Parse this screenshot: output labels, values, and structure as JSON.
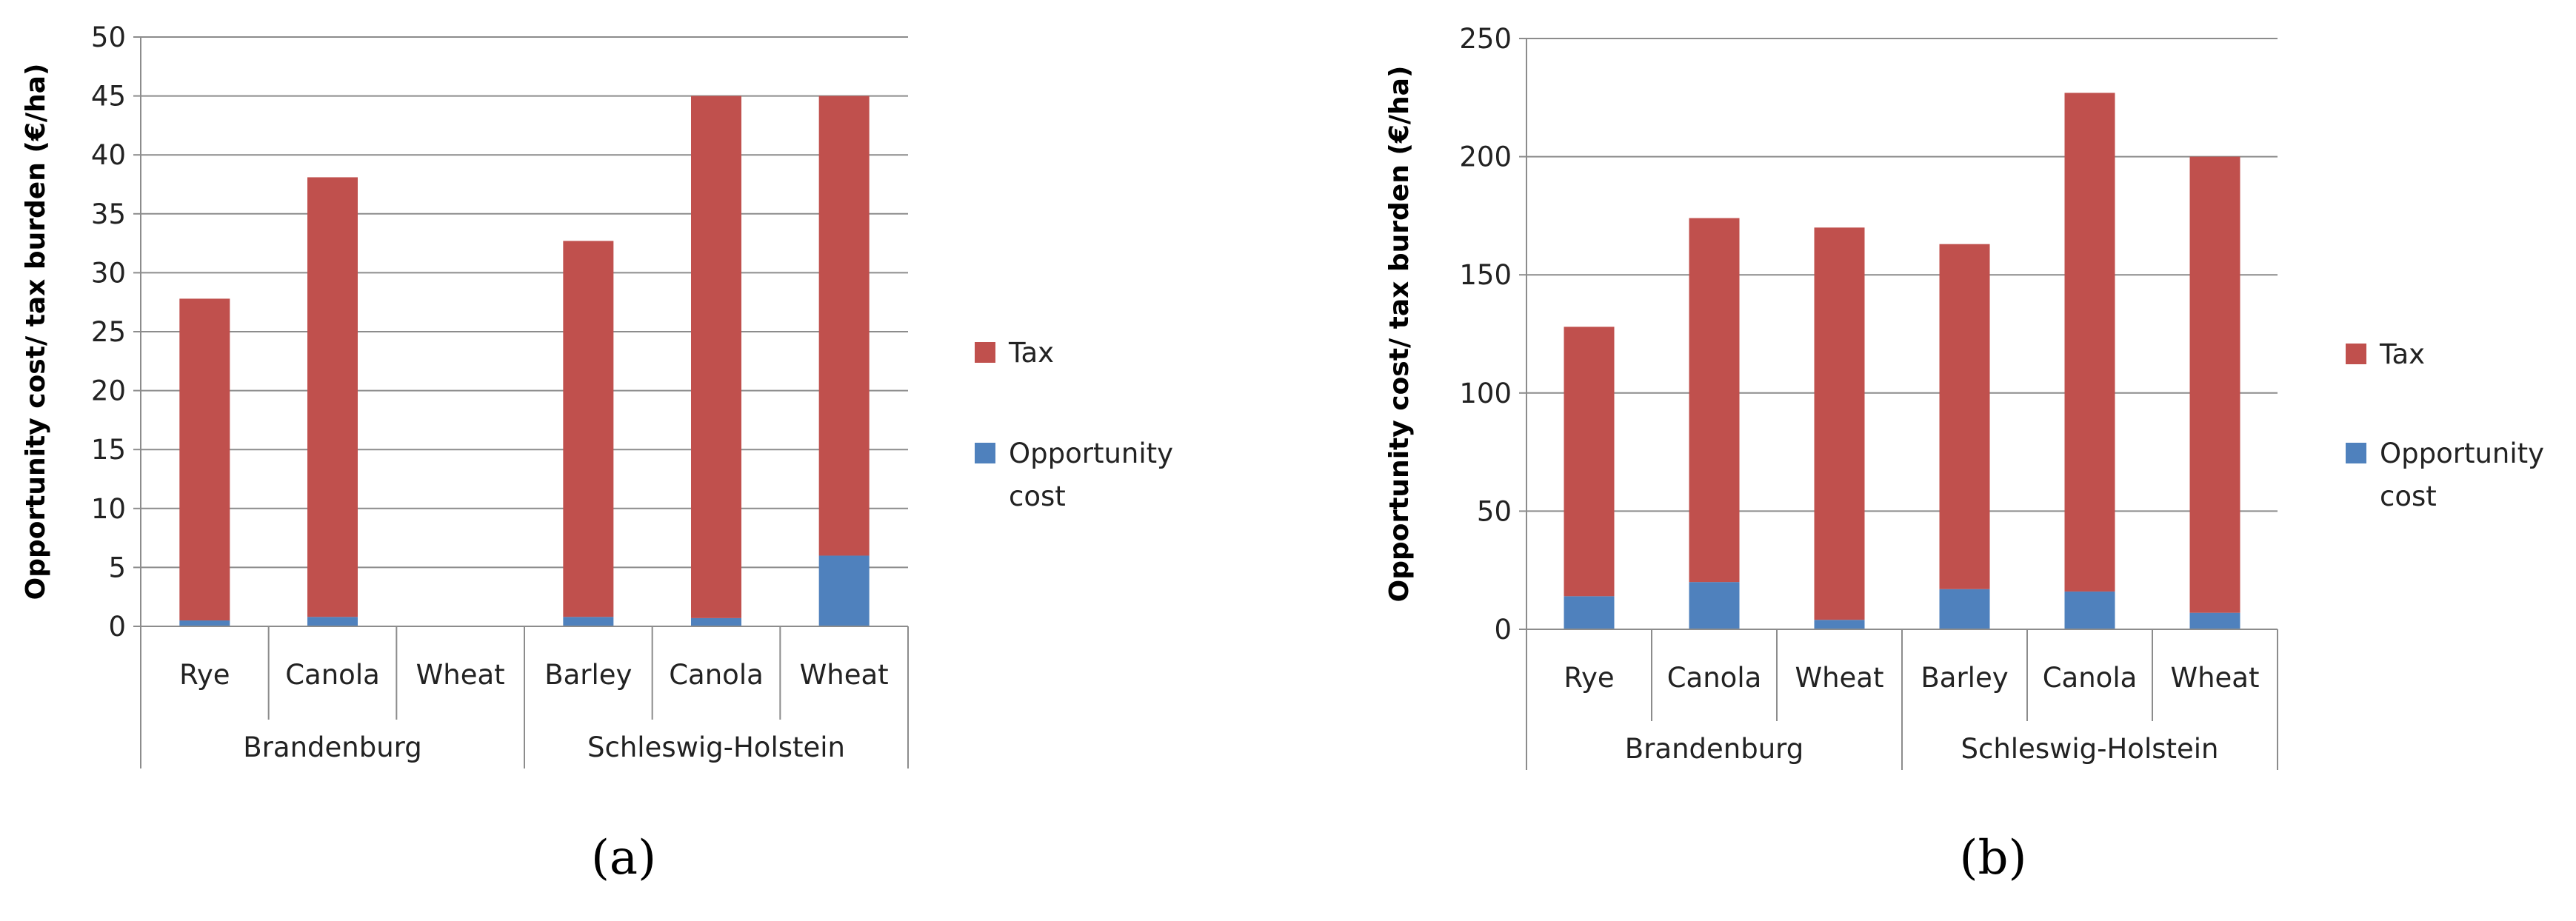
{
  "chart_data": [
    {
      "type": "bar",
      "stacked": true,
      "panel_label": "(a)",
      "ylabel": "Opportunity cost/ tax burden (€/ha)",
      "ylim": [
        0,
        50
      ],
      "yticks": [
        0,
        5,
        10,
        15,
        20,
        25,
        30,
        35,
        40,
        45,
        50
      ],
      "groups": [
        {
          "name": "Brandenburg",
          "categories": [
            "Rye",
            "Canola",
            "Wheat"
          ]
        },
        {
          "name": "Schleswig-Holstein",
          "categories": [
            "Barley",
            "Canola",
            "Wheat"
          ]
        }
      ],
      "categories": [
        "Rye",
        "Canola",
        "Wheat",
        "Barley",
        "Canola",
        "Wheat"
      ],
      "series": [
        {
          "name": "Opportunity cost",
          "color": "#4F81BD",
          "values": [
            0.5,
            0.8,
            0,
            0.8,
            0.7,
            6.0
          ]
        },
        {
          "name": "Tax",
          "color": "#C0504D",
          "values": [
            27.3,
            37.3,
            0,
            31.9,
            44.3,
            39.0
          ]
        }
      ],
      "legend_order": [
        "Tax",
        "Opportunity cost"
      ],
      "legend_position": "right"
    },
    {
      "type": "bar",
      "stacked": true,
      "panel_label": "(b)",
      "ylabel": "Opportunity cost/ tax burden (€/ha)",
      "ylim": [
        0,
        250
      ],
      "yticks": [
        0,
        50,
        100,
        150,
        200,
        250
      ],
      "groups": [
        {
          "name": "Brandenburg",
          "categories": [
            "Rye",
            "Canola",
            "Wheat"
          ]
        },
        {
          "name": "Schleswig-Holstein",
          "categories": [
            "Barley",
            "Canola",
            "Wheat"
          ]
        }
      ],
      "categories": [
        "Rye",
        "Canola",
        "Wheat",
        "Barley",
        "Canola",
        "Wheat"
      ],
      "series": [
        {
          "name": "Opportunity cost",
          "color": "#4F81BD",
          "values": [
            14,
            20,
            4,
            17,
            16,
            7
          ]
        },
        {
          "name": "Tax",
          "color": "#C0504D",
          "values": [
            114,
            154,
            166,
            146,
            211,
            193
          ]
        }
      ],
      "legend_order": [
        "Tax",
        "Opportunity cost"
      ],
      "legend_position": "right"
    }
  ]
}
